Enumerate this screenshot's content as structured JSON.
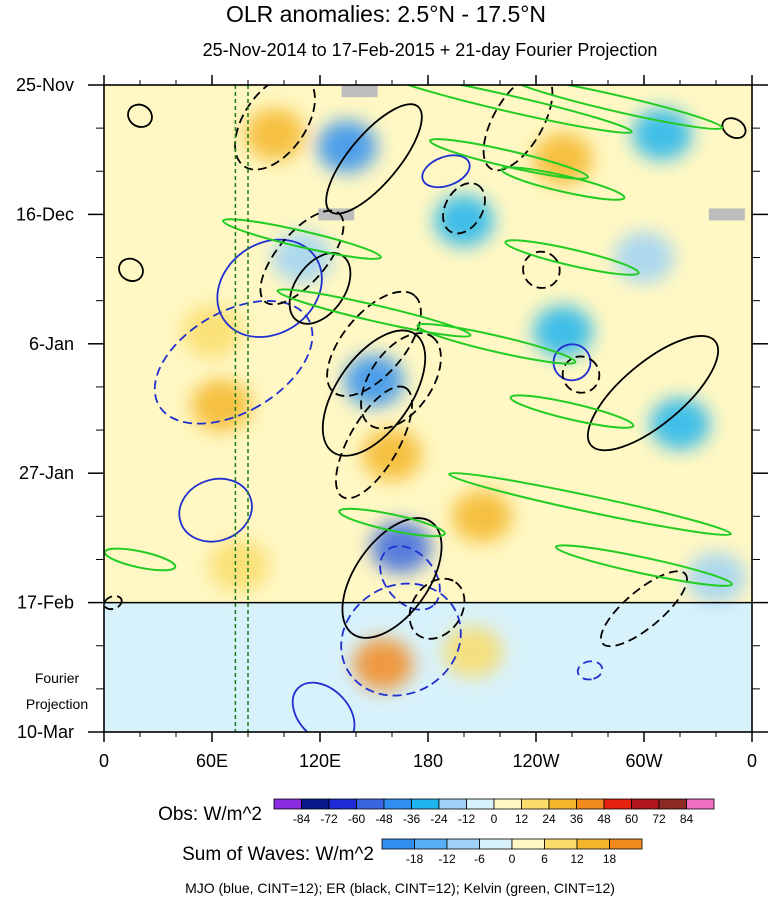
{
  "chart_data": {
    "type": "heatmap",
    "title": "OLR anomalies: 2.5°N - 17.5°N",
    "subtitle": "25-Nov-2014 to 17-Feb-2015 + 21-day Fourier Projection",
    "y_tick_labels": [
      "25-Nov",
      "16-Dec",
      "6-Jan",
      "27-Jan",
      "17-Feb",
      "10-Mar"
    ],
    "y_ticks_day": [
      0,
      21,
      42,
      63,
      84,
      105
    ],
    "projection_label": [
      "Fourier",
      "Projection"
    ],
    "x_tick_labels": [
      "0",
      "60E",
      "120E",
      "180",
      "120W",
      "60W",
      "0"
    ],
    "x_ticks_lon": [
      0,
      60,
      120,
      180,
      240,
      300,
      360
    ],
    "x_range": [
      0,
      360
    ],
    "y_range_days": [
      0,
      105
    ],
    "observed_end_day": 84,
    "reference_lines_lon": [
      73,
      80
    ],
    "obs_colorbar": {
      "label": "Obs: W/m^2",
      "levels": [
        "-84",
        "-72",
        "-60",
        "-48",
        "-36",
        "-24",
        "-12",
        "0",
        "12",
        "24",
        "36",
        "48",
        "60",
        "72",
        "84"
      ],
      "colors": [
        "#8b2be2",
        "#0a1a8c",
        "#1e2bd6",
        "#3a67e0",
        "#2f8ef0",
        "#1fb4ee",
        "#9fd2f6",
        "#d7f2fb",
        "#fff8c4",
        "#f9dc6a",
        "#f5b62a",
        "#f28a1c",
        "#e52110",
        "#b0151b",
        "#8c2a26",
        "#ee6fc0"
      ]
    },
    "waves_colorbar": {
      "label": "Sum of Waves: W/m^2",
      "levels": [
        "-18",
        "-12",
        "-6",
        "0",
        "6",
        "12",
        "18"
      ],
      "colors": [
        "#2f8ef0",
        "#58aef2",
        "#9fd2f6",
        "#d8f2fb",
        "#fff8c4",
        "#f9dc6a",
        "#f5b62a",
        "#f28a1c"
      ]
    },
    "contours_legend": "MJO (blue, CINT=12); ER (black, CINT=12); Kelvin (green, CINT=12)",
    "wave_colors": {
      "mjo": "#2030d0",
      "er": "#000000",
      "kelvin": "#22cc22"
    },
    "regions": [
      {
        "lon": 30,
        "day": 26,
        "value": 10
      },
      {
        "lon": 65,
        "day": 52,
        "value": 24
      },
      {
        "lon": 95,
        "day": 8,
        "value": 30
      },
      {
        "lon": 110,
        "day": 28,
        "value": -24
      },
      {
        "lon": 135,
        "day": 10,
        "value": -48
      },
      {
        "lon": 150,
        "day": 48,
        "value": -48
      },
      {
        "lon": 165,
        "day": 75,
        "value": -60
      },
      {
        "lon": 160,
        "day": 60,
        "value": 30
      },
      {
        "lon": 200,
        "day": 22,
        "value": -36
      },
      {
        "lon": 210,
        "day": 70,
        "value": 24
      },
      {
        "lon": 255,
        "day": 40,
        "value": -36
      },
      {
        "lon": 300,
        "day": 28,
        "value": -24
      },
      {
        "lon": 320,
        "day": 55,
        "value": -36
      },
      {
        "lon": 340,
        "day": 80,
        "value": -24
      },
      {
        "lon": 255,
        "day": 12,
        "value": 24
      },
      {
        "lon": 310,
        "day": 8,
        "value": -36
      },
      {
        "lon": 60,
        "day": 40,
        "value": 12
      },
      {
        "lon": 75,
        "day": 78,
        "value": 12
      },
      {
        "lon": 45,
        "day": 95,
        "value": -6
      },
      {
        "lon": 155,
        "day": 94,
        "value": 18
      },
      {
        "lon": 205,
        "day": 92,
        "value": 6
      },
      {
        "lon": 300,
        "day": 95,
        "value": -6
      },
      {
        "lon": 110,
        "day": 100,
        "value": -6
      }
    ],
    "mjo_contours": [
      {
        "lon": 72,
        "day": 45,
        "dlon": 28,
        "dday": 14,
        "angle": 60,
        "dashed": true
      },
      {
        "lon": 92,
        "day": 33,
        "dlon": 25,
        "dday": 9,
        "angle": 55,
        "dashed": false
      },
      {
        "lon": 62,
        "day": 69,
        "dlon": 17,
        "dday": 6,
        "angle": 70,
        "dashed": false
      },
      {
        "lon": 190,
        "day": 14,
        "dlon": 8,
        "dday": 4,
        "angle": 70,
        "dashed": false
      },
      {
        "lon": 260,
        "day": 45,
        "dlon": 10,
        "dday": 3,
        "angle": 80,
        "dashed": false
      },
      {
        "lon": 165,
        "day": 90,
        "dlon": 30,
        "dday": 10,
        "angle": 60,
        "dashed": true
      },
      {
        "lon": 122,
        "day": 102,
        "dlon": 20,
        "dday": 4,
        "angle": 45,
        "dashed": false
      },
      {
        "lon": 270,
        "day": 95,
        "dlon": 5,
        "dday": 2,
        "angle": 80,
        "dashed": true
      },
      {
        "lon": 170,
        "day": 80,
        "dlon": 20,
        "dday": 4,
        "angle": 50,
        "dashed": true
      }
    ],
    "er_contours": [
      {
        "lon": 95,
        "day": 6,
        "dlon": 30,
        "dday": 5,
        "angle": -55,
        "dashed": true
      },
      {
        "lon": 150,
        "day": 12,
        "dlon": 38,
        "dday": 4,
        "angle": -50,
        "dashed": false
      },
      {
        "lon": 110,
        "day": 28,
        "dlon": 32,
        "dday": 4,
        "angle": -50,
        "dashed": true
      },
      {
        "lon": 120,
        "day": 33,
        "dlon": 22,
        "dday": 4,
        "angle": -55,
        "dashed": false
      },
      {
        "lon": 150,
        "day": 50,
        "dlon": 40,
        "dday": 6,
        "angle": -55,
        "dashed": false
      },
      {
        "lon": 150,
        "day": 42,
        "dlon": 35,
        "dday": 5,
        "angle": -50,
        "dashed": true
      },
      {
        "lon": 165,
        "day": 48,
        "dlon": 30,
        "dday": 5,
        "angle": -55,
        "dashed": true
      },
      {
        "lon": 150,
        "day": 58,
        "dlon": 35,
        "dday": 4,
        "angle": -60,
        "dashed": true
      },
      {
        "lon": 160,
        "day": 80,
        "dlon": 38,
        "dday": 6,
        "angle": -55,
        "dashed": false
      },
      {
        "lon": 185,
        "day": 85,
        "dlon": 18,
        "dday": 4,
        "angle": -55,
        "dashed": true
      },
      {
        "lon": 200,
        "day": 20,
        "dlon": 15,
        "dday": 3,
        "angle": -60,
        "dashed": true
      },
      {
        "lon": 305,
        "day": 50,
        "dlon": 45,
        "dday": 5,
        "angle": -40,
        "dashed": false
      },
      {
        "lon": 265,
        "day": 47,
        "dlon": 10,
        "dday": 3,
        "angle": -55,
        "dashed": true
      },
      {
        "lon": 243,
        "day": 30,
        "dlon": 10,
        "dday": 3,
        "angle": -55,
        "dashed": true
      },
      {
        "lon": 230,
        "day": 6,
        "dlon": 30,
        "dday": 4,
        "angle": -60,
        "dashed": true
      },
      {
        "lon": 300,
        "day": 85,
        "dlon": 30,
        "dday": 3,
        "angle": -40,
        "dashed": true
      },
      {
        "lon": 15,
        "day": 30,
        "dlon": 6,
        "dday": 2,
        "angle": -60,
        "dashed": false
      },
      {
        "lon": 20,
        "day": 5,
        "dlon": 6,
        "dday": 2,
        "angle": -60,
        "dashed": false
      },
      {
        "lon": 350,
        "day": 7,
        "dlon": 5,
        "dday": 2,
        "angle": -60,
        "dashed": false
      },
      {
        "lon": 5,
        "day": 84,
        "dlon": 5,
        "dday": 1,
        "angle": -20,
        "dashed": true
      }
    ],
    "kelvin_contours": [
      {
        "lon": 225,
        "day": 3,
        "dlon": 70,
        "dday": 1.3,
        "angle": 13
      },
      {
        "lon": 285,
        "day": 3,
        "dlon": 60,
        "dday": 1.3,
        "angle": 13
      },
      {
        "lon": 225,
        "day": 12,
        "dlon": 45,
        "dday": 1.3,
        "angle": 13
      },
      {
        "lon": 255,
        "day": 16,
        "dlon": 35,
        "dday": 1.3,
        "angle": 13
      },
      {
        "lon": 110,
        "day": 25,
        "dlon": 45,
        "dday": 1.3,
        "angle": 13
      },
      {
        "lon": 260,
        "day": 28,
        "dlon": 38,
        "dday": 1.3,
        "angle": 13
      },
      {
        "lon": 150,
        "day": 37,
        "dlon": 55,
        "dday": 1.3,
        "angle": 13
      },
      {
        "lon": 218,
        "day": 42,
        "dlon": 45,
        "dday": 1.3,
        "angle": 13
      },
      {
        "lon": 260,
        "day": 53,
        "dlon": 35,
        "dday": 1.3,
        "angle": 13
      },
      {
        "lon": 270,
        "day": 68,
        "dlon": 80,
        "dday": 1.3,
        "angle": 12
      },
      {
        "lon": 300,
        "day": 78,
        "dlon": 50,
        "dday": 1.3,
        "angle": 12
      },
      {
        "lon": 160,
        "day": 71,
        "dlon": 30,
        "dday": 1.3,
        "angle": 12
      },
      {
        "lon": 20,
        "day": 77,
        "dlon": 20,
        "dday": 1.3,
        "angle": 12
      }
    ],
    "missing_data": [
      {
        "lon": 142,
        "day": 1
      },
      {
        "lon": 129,
        "day": 21
      },
      {
        "lon": 346,
        "day": 21
      }
    ]
  }
}
